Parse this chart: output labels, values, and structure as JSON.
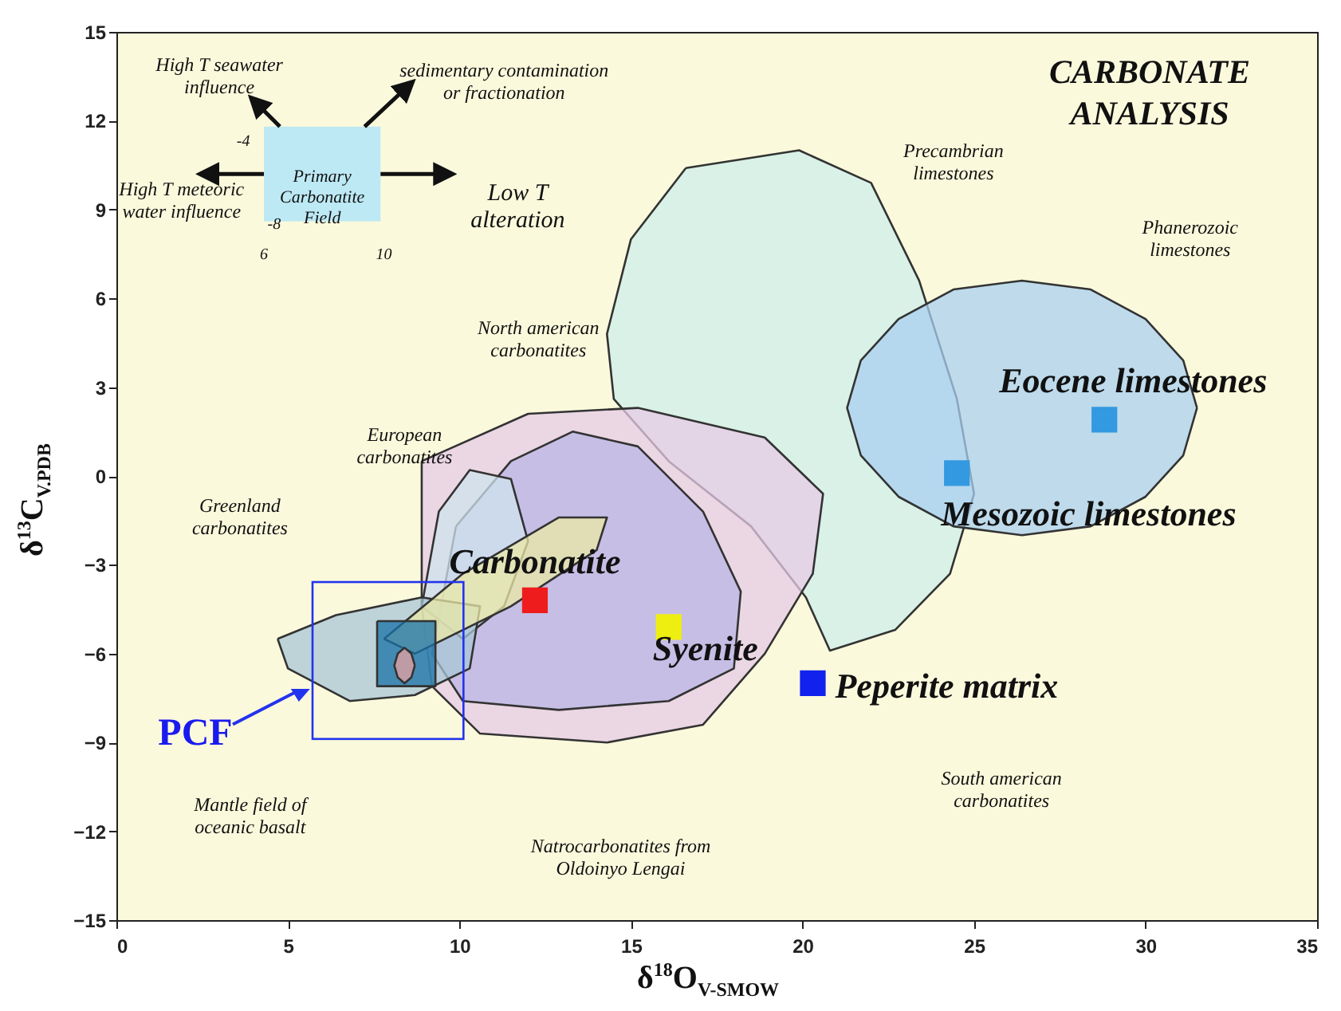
{
  "chart_data": {
    "type": "scatter",
    "title": "CARBONATE ANALYSIS",
    "xlabel": "δ$^{18}$O$_{V-SMOW}$",
    "ylabel": "δ$^{13}$C$_{V.PDB}$",
    "xlim": [
      0,
      35
    ],
    "xticks": [
      0,
      5,
      10,
      15,
      20,
      25,
      30,
      35
    ],
    "ylim": [
      -15,
      15
    ],
    "yticks": [
      -15,
      -12,
      -9,
      -6,
      -3,
      0,
      3,
      6,
      9,
      12,
      15
    ],
    "grid": false,
    "series": [
      {
        "type": "area",
        "color": "#cdeeea",
        "x": [
          16.6,
          19.9,
          22.0,
          23.4,
          24.5,
          25.0,
          24.3,
          22.7,
          20.8,
          20.1,
          18.5,
          16.1,
          14.5,
          14.3,
          15.0,
          16.6
        ],
        "values": [
          10.4,
          11.0,
          9.9,
          6.6,
          2.6,
          -0.6,
          -3.3,
          -5.2,
          -5.9,
          -4.1,
          -1.7,
          0.5,
          2.6,
          4.8,
          8.0,
          10.4
        ]
      },
      {
        "type": "area",
        "color": "#a9cff0",
        "x": [
          31.5,
          31.1,
          30.0,
          28.4,
          26.4,
          24.4,
          22.8,
          21.7,
          21.3,
          21.7,
          22.8,
          24.4,
          26.4,
          28.4,
          30.0,
          31.1,
          31.5
        ],
        "values": [
          2.3,
          3.9,
          5.3,
          6.3,
          6.6,
          6.3,
          5.3,
          3.9,
          2.3,
          0.7,
          -0.7,
          -1.7,
          -2.0,
          -1.7,
          -0.7,
          0.7,
          2.3
        ]
      },
      {
        "type": "area",
        "color": "#e6c9e6",
        "x": [
          8.9,
          12.0,
          15.2,
          18.9,
          20.6,
          20.3,
          18.9,
          17.1,
          14.3,
          10.6,
          9.2,
          8.9,
          8.9
        ],
        "values": [
          0.5,
          2.1,
          2.3,
          1.3,
          -0.6,
          -3.3,
          -6.0,
          -8.4,
          -9.0,
          -8.7,
          -7.1,
          -4.4,
          0.5
        ]
      },
      {
        "type": "area",
        "color": "#b9b6e6",
        "x": [
          9.9,
          11.5,
          13.3,
          15.2,
          17.1,
          18.2,
          18.0,
          16.1,
          12.9,
          10.1,
          9.2,
          9.9
        ],
        "values": [
          -1.7,
          0.5,
          1.5,
          1.0,
          -1.2,
          -3.9,
          -6.5,
          -7.6,
          -7.9,
          -7.6,
          -6.0,
          -1.7
        ]
      },
      {
        "type": "area",
        "color": "#cfe3ee",
        "x": [
          8.9,
          9.4,
          10.3,
          11.5,
          12.0,
          11.3,
          10.1,
          8.9
        ],
        "values": [
          -4.4,
          -1.2,
          0.2,
          -0.1,
          -2.2,
          -4.4,
          -5.5,
          -4.4
        ]
      },
      {
        "type": "area",
        "color": "#a8c6d6",
        "x": [
          4.7,
          6.4,
          8.9,
          10.6,
          10.3,
          8.7,
          6.8,
          5.0,
          4.7
        ],
        "values": [
          -5.5,
          -4.7,
          -4.1,
          -4.4,
          -6.5,
          -7.4,
          -7.6,
          -6.5,
          -5.5
        ]
      },
      {
        "type": "area",
        "color": "#e9e8a6",
        "x": [
          7.8,
          10.1,
          12.9,
          14.3,
          14.0,
          11.5,
          8.7,
          7.8
        ],
        "values": [
          -5.5,
          -3.3,
          -1.4,
          -1.4,
          -2.5,
          -4.4,
          -6.0,
          -5.5
        ]
      },
      {
        "type": "area",
        "color": "#1a72a8",
        "x": [
          7.6,
          9.3,
          9.3,
          7.6,
          7.6
        ],
        "values": [
          -4.9,
          -4.9,
          -7.1,
          -7.1,
          -4.9
        ]
      },
      {
        "type": "area",
        "color": "#e8a0a0",
        "x": [
          8.7,
          8.6,
          8.4,
          8.2,
          8.1,
          8.2,
          8.4,
          8.6,
          8.7
        ],
        "values": [
          -6.4,
          -6.0,
          -5.8,
          -6.0,
          -6.4,
          -6.8,
          -7.0,
          -6.8,
          -6.4
        ]
      },
      {
        "name": "Carbonatite",
        "color": "#ee1c1c",
        "marker": "square",
        "x": [
          12.2
        ],
        "values": [
          -4.2
        ]
      },
      {
        "name": "Syenite",
        "color": "#eeee11",
        "marker": "square",
        "x": [
          16.1
        ],
        "values": [
          -5.1
        ]
      },
      {
        "name": "Peperite matrix",
        "color": "#1122ee",
        "marker": "square",
        "x": [
          20.3
        ],
        "values": [
          -7.0
        ]
      },
      {
        "name": "Mesozoic limestones",
        "color": "#3399e0",
        "marker": "square",
        "x": [
          24.5
        ],
        "values": [
          0.1
        ]
      },
      {
        "name": "Eocene limestones",
        "color": "#3399e0",
        "marker": "square",
        "x": [
          28.8
        ],
        "values": [
          1.9
        ]
      }
    ],
    "annotations": [
      "High T seawater influence",
      "sedimentary contamination or fractionation",
      "Primary Carbonatite Field",
      "High T meteoric water influence",
      "Low T alteration",
      "-4",
      "-8",
      "6",
      "10",
      "Precambrian limestones",
      "Phanerozoic limestones",
      "North american carbonatites",
      "European carbonatites",
      "Greenland carbonatites",
      "Mantle field of oceanic basalt",
      "Natrocarbonatites from Oldoinyo Lengai",
      "South american carbonatites",
      "PCF"
    ]
  }
}
